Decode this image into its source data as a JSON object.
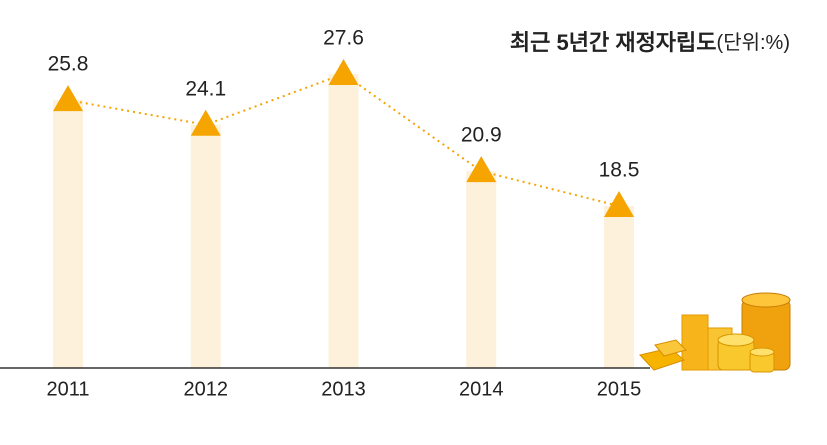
{
  "chart_data": {
    "type": "line",
    "title": "최근 5년간 재정자립도",
    "unit": "(단위:%)",
    "categories": [
      "2011",
      "2012",
      "2013",
      "2014",
      "2015"
    ],
    "values": [
      25.8,
      24.1,
      27.6,
      20.9,
      18.5
    ],
    "color": "#f5a400",
    "bar_color": "#fdf1dc"
  }
}
